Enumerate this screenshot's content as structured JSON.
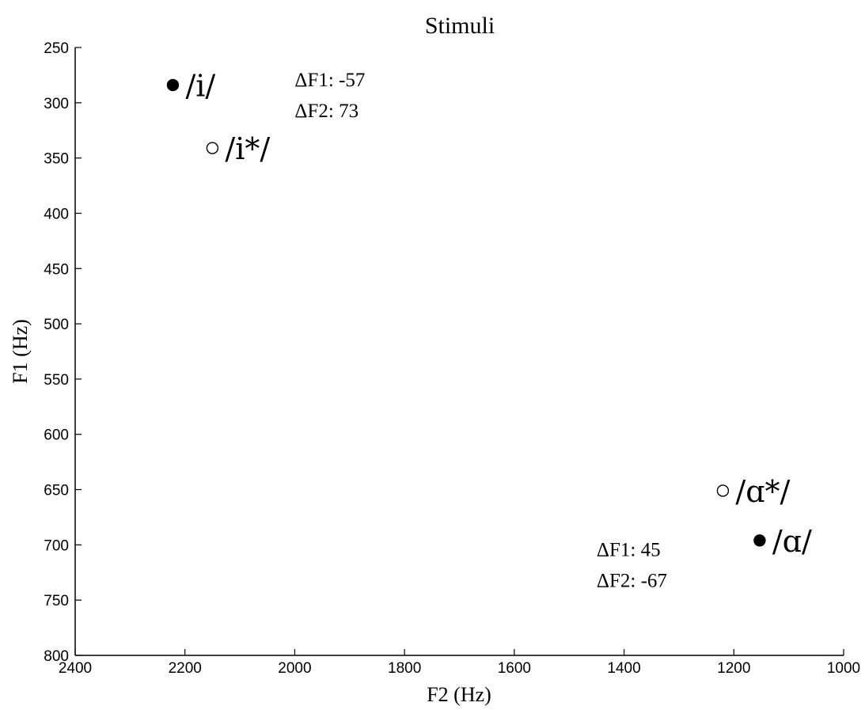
{
  "chart_data": {
    "type": "scatter",
    "title": "Stimuli",
    "xlabel": "F2 (Hz)",
    "ylabel": "F1 (Hz)",
    "xlim": [
      2400,
      1000
    ],
    "ylim": [
      250,
      800
    ],
    "x_reversed": true,
    "y_reversed": true,
    "x_ticks": [
      2400,
      2200,
      2000,
      1800,
      1600,
      1400,
      1200,
      1000
    ],
    "y_ticks": [
      250,
      300,
      350,
      400,
      450,
      500,
      550,
      600,
      650,
      700,
      750,
      800
    ],
    "grid": false,
    "points": [
      {
        "label": "/i/",
        "x": 2222,
        "y": 284,
        "filled": true
      },
      {
        "label": "/i*/",
        "x": 2150,
        "y": 341,
        "filled": false
      },
      {
        "label": "/ɑ*/",
        "x": 1220,
        "y": 651,
        "filled": false
      },
      {
        "label": "/ɑ/",
        "x": 1153,
        "y": 696,
        "filled": true
      }
    ],
    "annotations": [
      {
        "lines": [
          "ΔF1: -57",
          "ΔF2: 73"
        ],
        "x": 2000,
        "y": 285
      },
      {
        "lines": [
          "ΔF1: 45",
          "ΔF2: -67"
        ],
        "x": 1450,
        "y": 710
      }
    ]
  }
}
